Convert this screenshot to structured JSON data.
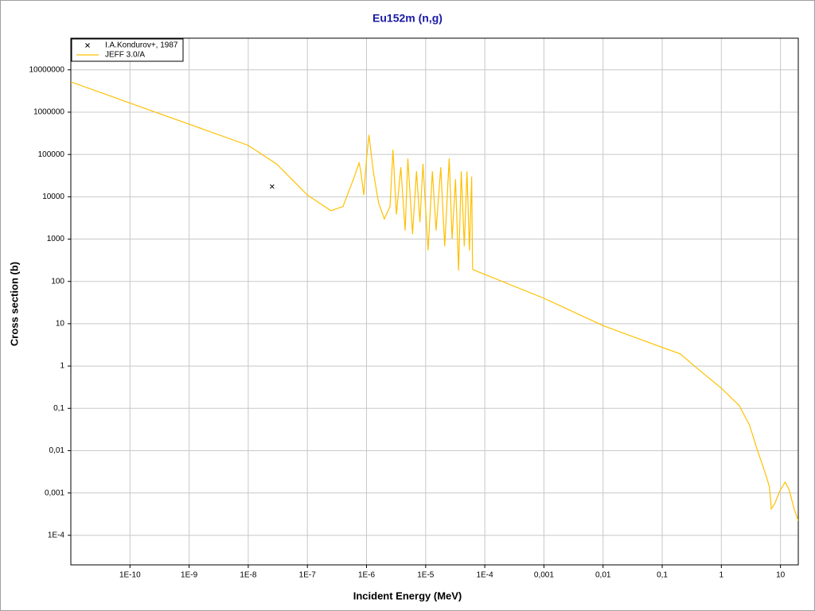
{
  "chart_data": {
    "type": "line",
    "title": "Eu152m (n,g)",
    "xlabel": "Incident Energy (MeV)",
    "ylabel": "Cross section (b)",
    "xscale": "log",
    "yscale": "log",
    "grid": true,
    "legend": "upper left",
    "xlim": [
      1e-11,
      20
    ],
    "ylim": [
      2e-05,
      56000000
    ],
    "xticks": [
      {
        "value": 1e-10,
        "label": "1E-10"
      },
      {
        "value": 1e-09,
        "label": "1E-9"
      },
      {
        "value": 1e-08,
        "label": "1E-8"
      },
      {
        "value": 1e-07,
        "label": "1E-7"
      },
      {
        "value": 1e-06,
        "label": "1E-6"
      },
      {
        "value": 1e-05,
        "label": "1E-5"
      },
      {
        "value": 0.0001,
        "label": "1E-4"
      },
      {
        "value": 0.001,
        "label": "0,001"
      },
      {
        "value": 0.01,
        "label": "0,01"
      },
      {
        "value": 0.1,
        "label": "0,1"
      },
      1,
      10
    ],
    "yticks": [
      {
        "value": 0.0001,
        "label": "1E-4"
      },
      {
        "value": 0.001,
        "label": "0,001"
      },
      {
        "value": 0.01,
        "label": "0,01"
      },
      {
        "value": 0.1,
        "label": "0,1"
      },
      1,
      10,
      100,
      1000,
      10000,
      100000,
      1000000,
      10000000
    ],
    "series": [
      {
        "name": "I.A.Kondurov+, 1987",
        "type": "scatter",
        "color": "#000000",
        "x": [
          2.53e-08
        ],
        "values": [
          17500
        ]
      },
      {
        "name": "JEFF 3.0/A",
        "type": "line",
        "color": "#ffc000",
        "x": [
          1e-11,
          1e-10,
          1e-09,
          1e-08,
          3e-08,
          1e-07,
          2.5e-07,
          4e-07,
          6e-07,
          7.5e-07,
          8e-07,
          9e-07,
          1e-06,
          1.1e-06,
          1.3e-06,
          1.6e-06,
          2e-06,
          2.5e-06,
          2.8e-06,
          3.2e-06,
          3.8e-06,
          4.5e-06,
          5e-06,
          6e-06,
          7e-06,
          8e-06,
          9e-06,
          1.1e-05,
          1.3e-05,
          1.5e-05,
          1.8e-05,
          2.1e-05,
          2.5e-05,
          2.8e-05,
          3.2e-05,
          3.6e-05,
          4e-05,
          4.5e-05,
          5e-05,
          5.5e-05,
          6e-05,
          6.2e-05,
          6.3e-05,
          0.001,
          0.01,
          0.1,
          0.2,
          0.5,
          1,
          2,
          3,
          4,
          5.5,
          6.5,
          7,
          8,
          10,
          12,
          14,
          17,
          20
        ],
        "values": [
          5200000,
          1640000,
          520000,
          164000,
          60000,
          11000,
          4700,
          5900,
          26000,
          63000,
          40000,
          11000,
          80000,
          290000,
          40000,
          7200,
          3000,
          5900,
          130000,
          3800,
          50000,
          1600,
          80000,
          1300,
          40000,
          2500,
          60000,
          540,
          40000,
          1600,
          50000,
          680,
          80000,
          1000,
          26000,
          180,
          40000,
          680,
          40000,
          540,
          30000,
          230,
          190,
          40,
          9,
          2.75,
          1.95,
          0.66,
          0.3,
          0.117,
          0.04,
          0.011,
          0.003,
          0.0014,
          0.00042,
          0.00056,
          0.0012,
          0.0018,
          0.0012,
          0.00042,
          0.00022
        ]
      }
    ]
  }
}
